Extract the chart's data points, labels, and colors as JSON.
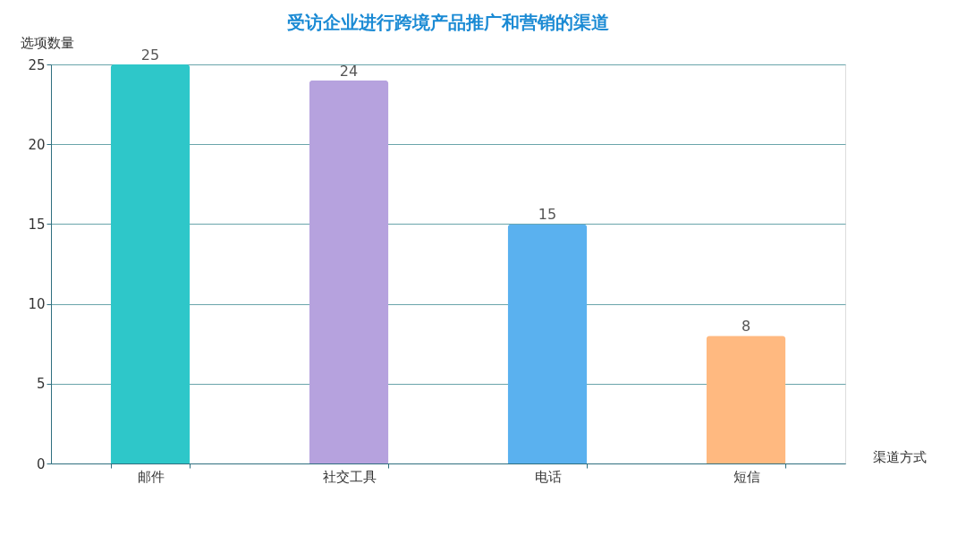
{
  "chart_data": {
    "type": "bar",
    "title": "受访企业进行跨境产品推广和营销的渠道",
    "xlabel": "渠道方式",
    "ylabel": "选项数量",
    "categories": [
      "邮件",
      "社交工具",
      "电话",
      "短信"
    ],
    "values": [
      25,
      24,
      15,
      8
    ],
    "colors": [
      "#2ec7c9",
      "#b6a2de",
      "#5ab1ef",
      "#ffb980"
    ],
    "ylim": [
      0,
      25
    ],
    "yticks": [
      0,
      5,
      10,
      15,
      20,
      25
    ],
    "grid": "y",
    "data_labels": true
  }
}
